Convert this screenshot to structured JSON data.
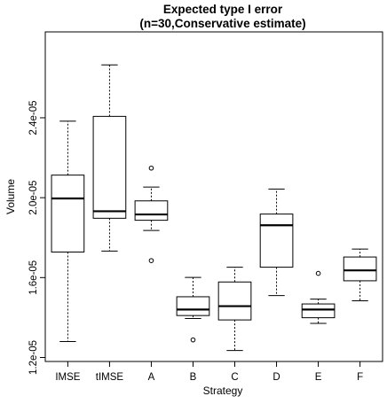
{
  "chart_data": {
    "type": "box",
    "title_lines": [
      "Expected type I error",
      "(n=30,Conservative estimate)"
    ],
    "xlabel": "Strategy",
    "ylabel": "Volume",
    "ylim": [
      1.18e-05,
      2.83e-05
    ],
    "y_tick_values": [
      1.2e-05,
      1.6e-05,
      2e-05,
      2.4e-05
    ],
    "y_tick_labels": [
      "1.2e-05",
      "1.6e-05",
      "2.0e-05",
      "2.4e-05"
    ],
    "categories": [
      "IMSE",
      "tIMSE",
      "A",
      "B",
      "C",
      "D",
      "E",
      "F"
    ],
    "boxes": [
      {
        "category": "IMSE",
        "whisker_low": 1.28e-05,
        "q1": 1.728e-05,
        "median": 1.996e-05,
        "q3": 2.113e-05,
        "whisker_high": 2.383e-05,
        "outliers": []
      },
      {
        "category": "tIMSE",
        "whisker_low": 1.733e-05,
        "q1": 1.897e-05,
        "median": 1.932e-05,
        "q3": 2.407e-05,
        "whisker_high": 2.665e-05,
        "outliers": []
      },
      {
        "category": "A",
        "whisker_low": 1.836e-05,
        "q1": 1.887e-05,
        "median": 1.916e-05,
        "q3": 1.984e-05,
        "whisker_high": 2.053e-05,
        "outliers": [
          2.148e-05,
          1.685e-05
        ]
      },
      {
        "category": "B",
        "whisker_low": 1.395e-05,
        "q1": 1.41e-05,
        "median": 1.44e-05,
        "q3": 1.504e-05,
        "whisker_high": 1.601e-05,
        "outliers": [
          1.288e-05
        ]
      },
      {
        "category": "C",
        "whisker_low": 1.235e-05,
        "q1": 1.388e-05,
        "median": 1.457e-05,
        "q3": 1.578e-05,
        "whisker_high": 1.652e-05,
        "outliers": []
      },
      {
        "category": "D",
        "whisker_low": 1.51e-05,
        "q1": 1.652e-05,
        "median": 1.862e-05,
        "q3": 1.918e-05,
        "whisker_high": 2.043e-05,
        "outliers": []
      },
      {
        "category": "E",
        "whisker_low": 1.371e-05,
        "q1": 1.399e-05,
        "median": 1.44e-05,
        "q3": 1.468e-05,
        "whisker_high": 1.492e-05,
        "outliers": [
          1.621e-05
        ]
      },
      {
        "category": "F",
        "whisker_low": 1.484e-05,
        "q1": 1.584e-05,
        "median": 1.636e-05,
        "q3": 1.703e-05,
        "whisker_high": 1.743e-05,
        "outliers": []
      }
    ],
    "grid": false,
    "colors": {
      "box_fill": "#ffffff",
      "stroke": "#000000",
      "background": "#ffffff"
    }
  }
}
